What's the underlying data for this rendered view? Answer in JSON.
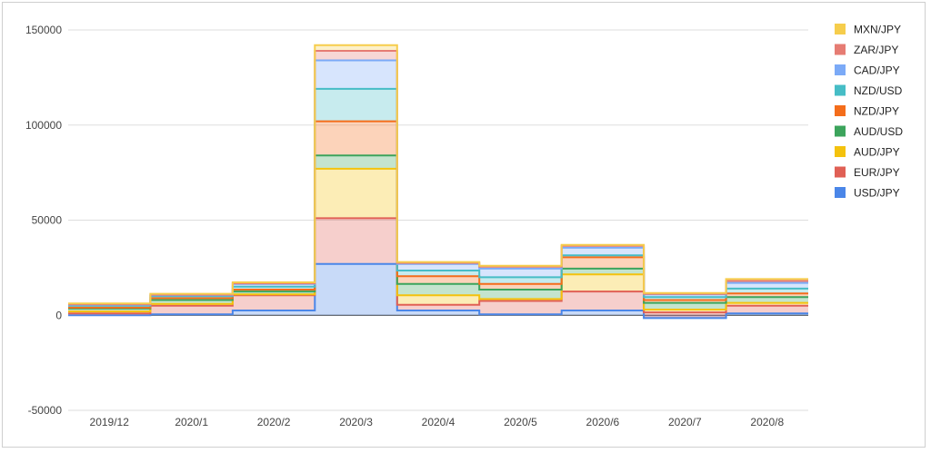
{
  "chart_data": {
    "type": "area",
    "stacked": true,
    "stepped": true,
    "categories": [
      "2019/12",
      "2020/1",
      "2020/2",
      "2020/3",
      "2020/4",
      "2020/5",
      "2020/6",
      "2020/7",
      "2020/8"
    ],
    "ylim": [
      -50000,
      150000
    ],
    "yticks": [
      -50000,
      0,
      50000,
      100000,
      150000
    ],
    "ytick_labels": [
      "-50000",
      "0",
      "50000",
      "100000",
      "150000"
    ],
    "grid": true,
    "legend_position": "right",
    "series": [
      {
        "name": "USD/JPY",
        "color": "#4a86e8",
        "values": [
          0,
          500,
          2500,
          27000,
          2500,
          500,
          2500,
          -1500,
          1000
        ]
      },
      {
        "name": "EUR/JPY",
        "color": "#e06055",
        "values": [
          1000,
          4500,
          8000,
          24000,
          3000,
          7000,
          10000,
          3000,
          4000
        ]
      },
      {
        "name": "AUD/JPY",
        "color": "#f4c20d",
        "values": [
          1000,
          1000,
          500,
          26000,
          5000,
          1000,
          9000,
          1500,
          1500
        ]
      },
      {
        "name": "AUD/USD",
        "color": "#3ca45c",
        "values": [
          1500,
          2000,
          1500,
          7000,
          6000,
          5000,
          3000,
          3500,
          3000
        ]
      },
      {
        "name": "NZD/JPY",
        "color": "#f46d1b",
        "values": [
          500,
          1000,
          1000,
          18000,
          4000,
          3000,
          6000,
          1500,
          2000
        ]
      },
      {
        "name": "NZD/USD",
        "color": "#46bdc6",
        "values": [
          1000,
          1000,
          1500,
          17000,
          3000,
          3500,
          1000,
          1500,
          2500
        ]
      },
      {
        "name": "CAD/JPY",
        "color": "#7baaf7",
        "values": [
          500,
          500,
          1500,
          15000,
          3500,
          4500,
          4000,
          1500,
          3000
        ]
      },
      {
        "name": "ZAR/JPY",
        "color": "#e67c73",
        "values": [
          200,
          300,
          300,
          5000,
          500,
          1000,
          1000,
          200,
          1000
        ]
      },
      {
        "name": "MXN/JPY",
        "color": "#f6cd4c",
        "values": [
          500,
          500,
          500,
          3000,
          500,
          500,
          500,
          500,
          1000
        ]
      }
    ]
  }
}
